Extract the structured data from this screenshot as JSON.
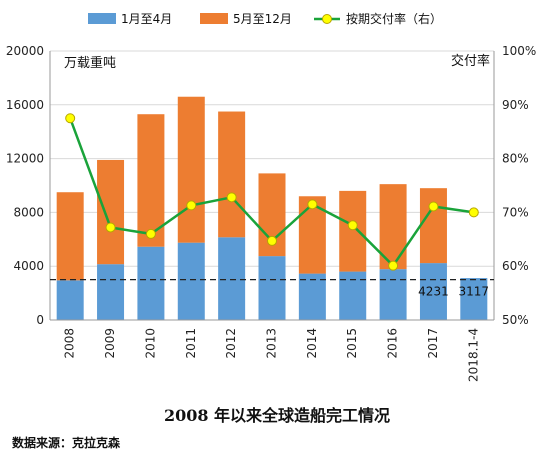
{
  "chart_data": {
    "type": "bar",
    "title": "2008 年以来全球造船完工情况",
    "source": "数据来源：克拉克森",
    "y_left_label": "万载重吨",
    "y_right_label": "交付率",
    "categories": [
      "2008",
      "2009",
      "2010",
      "2011",
      "2012",
      "2013",
      "2014",
      "2015",
      "2016",
      "2017",
      "2018.1-4"
    ],
    "ylim_left": [
      0,
      20000
    ],
    "yticks_left": [
      "0",
      "4000",
      "8000",
      "12000",
      "16000",
      "20000"
    ],
    "ylim_right": [
      50,
      100
    ],
    "yticks_right": [
      "50%",
      "60%",
      "70%",
      "80%",
      "90%",
      "100%"
    ],
    "stacked": true,
    "series": [
      {
        "name": "1月至4月",
        "axis": "left",
        "color": "#5b9bd5",
        "values": [
          2950,
          4150,
          5450,
          5750,
          6150,
          4750,
          3450,
          3600,
          3780,
          4231,
          3117
        ]
      },
      {
        "name": "5月至12月",
        "axis": "left",
        "color": "#ed7d31",
        "values": [
          6550,
          7750,
          9850,
          10850,
          9350,
          6150,
          5750,
          6000,
          6320,
          5570,
          null
        ]
      },
      {
        "name": "按期交付率（右）",
        "type": "line",
        "axis": "right",
        "color": "#1aa33a",
        "marker": "#ffff00",
        "values": [
          87.5,
          67.2,
          66.0,
          71.3,
          72.8,
          64.7,
          71.5,
          67.6,
          60.1,
          71.1,
          70.0
        ]
      }
    ],
    "reference_line": {
      "value": 3000,
      "style": "dashed",
      "color": "#222222"
    },
    "data_labels": [
      {
        "index": 9,
        "text": "4231"
      },
      {
        "index": 10,
        "text": "3117"
      }
    ],
    "legend": "top",
    "grid": true
  }
}
